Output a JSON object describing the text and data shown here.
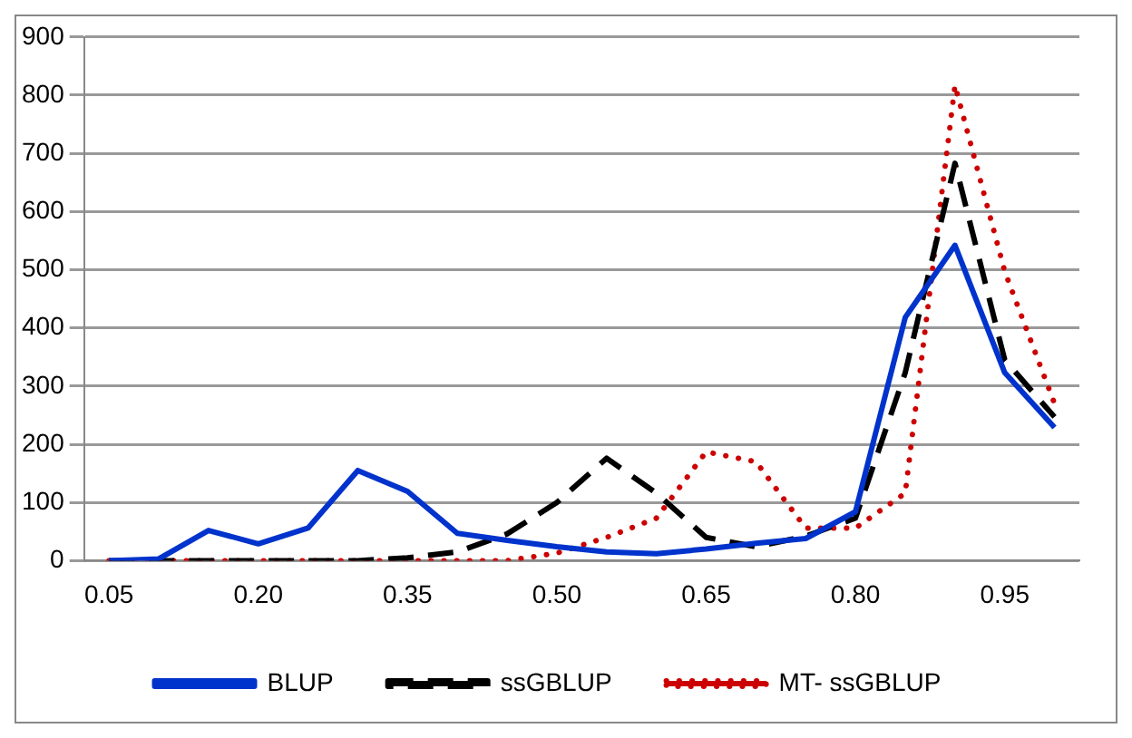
{
  "chart_data": {
    "type": "line",
    "categories": [
      "0.05",
      null,
      null,
      "0.20",
      null,
      null,
      "0.35",
      null,
      null,
      "0.50",
      null,
      null,
      "0.65",
      null,
      null,
      "0.80",
      null,
      null,
      "0.95",
      null
    ],
    "series": [
      {
        "name": "BLUP",
        "color": "#0033cc",
        "line_style": "solid",
        "values": [
          0,
          3,
          52,
          29,
          56,
          155,
          119,
          47,
          35,
          24,
          15,
          12,
          20,
          30,
          38,
          84,
          418,
          542,
          323,
          229
        ]
      },
      {
        "name": "ssGBLUP",
        "color": "#000000",
        "line_style": "dashed",
        "values": [
          0,
          0,
          0,
          0,
          0,
          0,
          5,
          15,
          46,
          100,
          176,
          116,
          40,
          24,
          42,
          73,
          323,
          683,
          345,
          247
        ]
      },
      {
        "name": "MT- ssGBLUP",
        "color": "#cc0000",
        "line_style": "dotted",
        "values": [
          0,
          0,
          0,
          0,
          0,
          0,
          0,
          0,
          0,
          13,
          40,
          73,
          187,
          170,
          56,
          56,
          116,
          817,
          497,
          270
        ]
      }
    ],
    "ylim": [
      0,
      900
    ],
    "yticks": [
      0,
      100,
      200,
      300,
      400,
      500,
      600,
      700,
      800,
      900
    ],
    "grid": "y",
    "legend": "bottom",
    "marker": "none"
  }
}
